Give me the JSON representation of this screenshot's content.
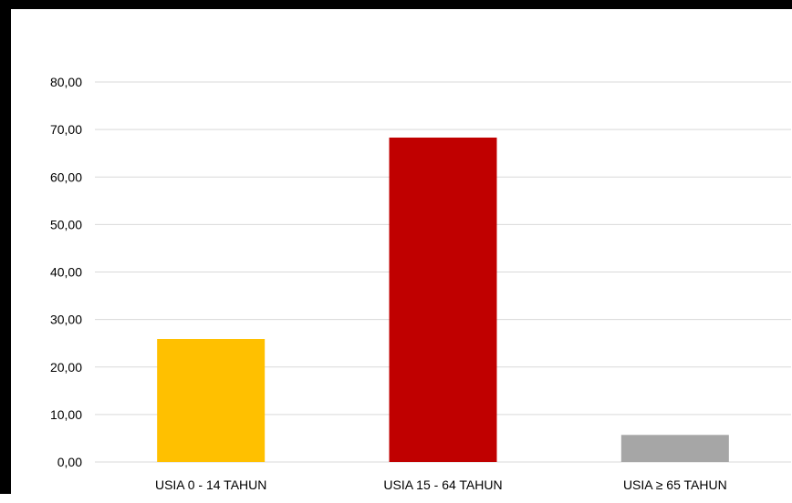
{
  "chart_data": {
    "type": "bar",
    "categories": [
      "USIA 0 - 14 TAHUN",
      "USIA 15 - 64 TAHUN",
      "USIA ≥ 65 TAHUN"
    ],
    "values": [
      25.9,
      68.3,
      5.7
    ],
    "colors": [
      "#ffc000",
      "#c00000",
      "#a6a6a6"
    ],
    "ylim": [
      0,
      80
    ],
    "yticks": [
      "0,00",
      "10,00",
      "20,00",
      "30,00",
      "40,00",
      "50,00",
      "60,00",
      "70,00",
      "80,00"
    ],
    "ytick_values": [
      0,
      10,
      20,
      30,
      40,
      50,
      60,
      70,
      80
    ],
    "grid": true,
    "legend": "none"
  }
}
